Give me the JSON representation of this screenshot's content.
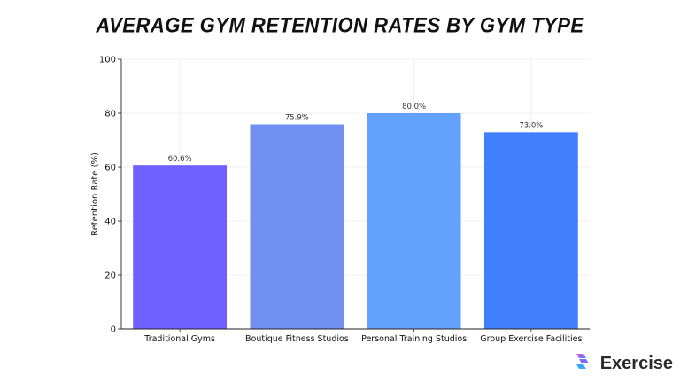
{
  "chart_data": {
    "type": "bar",
    "title": "AVERAGE GYM RETENTION RATES BY GYM TYPE",
    "xlabel": "",
    "ylabel": "Retention Rate (%)",
    "ylim": [
      0,
      100
    ],
    "yticks": [
      0,
      20,
      40,
      60,
      80,
      100
    ],
    "grid": true,
    "categories": [
      "Traditional Gyms",
      "Boutique Fitness Studios",
      "Personal Training Studios",
      "Group Exercise Facilities"
    ],
    "values": [
      60.6,
      75.9,
      80.0,
      73.0
    ],
    "data_labels": [
      "60.6%",
      "75.9%",
      "80.0%",
      "73.0%"
    ],
    "colors": [
      "#7060ff",
      "#6f90f0",
      "#62a2fd",
      "#4080ff"
    ]
  },
  "brand": {
    "name": "Exercise",
    "logo_icon": "exercise-logo-icon"
  }
}
